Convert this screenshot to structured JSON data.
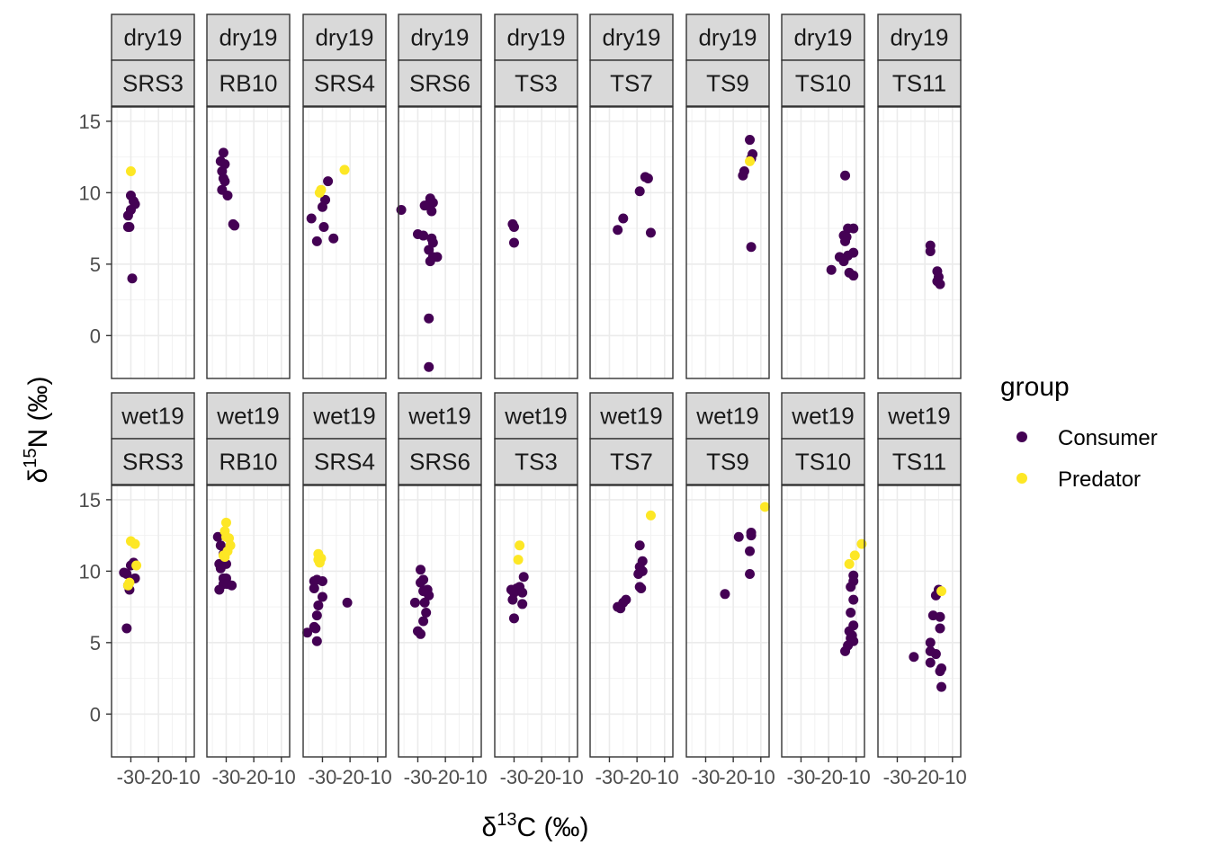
{
  "chart_data": {
    "type": "scatter",
    "xlabel": "δ13C (‰)",
    "ylabel": "δ15N (‰)",
    "xlim": [
      -37,
      -7
    ],
    "ylim": [
      -3,
      16
    ],
    "x_ticks": [
      -30,
      -20,
      -10
    ],
    "x_tick_labels": [
      "-30",
      "-20",
      "-10"
    ],
    "y_ticks": [
      0,
      5,
      10,
      15
    ],
    "y_tick_labels": [
      "0",
      "5",
      "10",
      "15"
    ],
    "grid": true,
    "legend": {
      "title": "group",
      "position": "right",
      "entries": [
        {
          "label": "Consumer",
          "color": "#440154"
        },
        {
          "label": "Predator",
          "color": "#FDE725"
        }
      ]
    },
    "seasons": [
      "dry19",
      "wet19"
    ],
    "sites": [
      "SRS3",
      "RB10",
      "SRS4",
      "SRS6",
      "TS3",
      "TS7",
      "TS9",
      "TS10",
      "TS11"
    ],
    "panels": [
      {
        "season": "dry19",
        "site": "SRS3",
        "consumer": [
          [
            -30,
            9.8
          ],
          [
            -29,
            9.4
          ],
          [
            -28.5,
            9.2
          ],
          [
            -30,
            8.8
          ],
          [
            -31,
            8.4
          ],
          [
            -31,
            7.6
          ],
          [
            -30.5,
            7.6
          ],
          [
            -29.5,
            4.0
          ]
        ],
        "predator": [
          [
            -30,
            11.5
          ]
        ]
      },
      {
        "season": "dry19",
        "site": "RB10",
        "consumer": [
          [
            -31,
            12.8
          ],
          [
            -32,
            12.2
          ],
          [
            -30.5,
            12.0
          ],
          [
            -31.5,
            11.5
          ],
          [
            -31,
            11.0
          ],
          [
            -30.5,
            10.8
          ],
          [
            -31.5,
            10.2
          ],
          [
            -29.5,
            9.8
          ],
          [
            -27.5,
            7.8
          ],
          [
            -27,
            7.7
          ]
        ],
        "predator": []
      },
      {
        "season": "dry19",
        "site": "SRS4",
        "consumer": [
          [
            -28,
            10.8
          ],
          [
            -29,
            9.5
          ],
          [
            -30,
            9.0
          ],
          [
            -34,
            8.2
          ],
          [
            -29.5,
            7.6
          ],
          [
            -26,
            6.8
          ],
          [
            -32,
            6.6
          ]
        ],
        "predator": [
          [
            -22,
            11.6
          ],
          [
            -30.5,
            10.2
          ],
          [
            -31,
            10.0
          ]
        ]
      },
      {
        "season": "dry19",
        "site": "SRS6",
        "consumer": [
          [
            -36,
            8.8
          ],
          [
            -30,
            7.1
          ],
          [
            -28,
            7.0
          ],
          [
            -25.5,
            9.6
          ],
          [
            -24.5,
            9.3
          ],
          [
            -26,
            9.2
          ],
          [
            -27.5,
            9.1
          ],
          [
            -25,
            8.7
          ],
          [
            -25,
            6.8
          ],
          [
            -24.5,
            6.5
          ],
          [
            -26,
            6.0
          ],
          [
            -23,
            5.5
          ],
          [
            -24.5,
            5.5
          ],
          [
            -25.5,
            5.2
          ],
          [
            -26,
            1.2
          ],
          [
            -26,
            -2.2
          ]
        ],
        "predator": []
      },
      {
        "season": "dry19",
        "site": "TS3",
        "consumer": [
          [
            -30.5,
            7.8
          ],
          [
            -30,
            7.6
          ],
          [
            -30,
            6.5
          ]
        ],
        "predator": []
      },
      {
        "season": "dry19",
        "site": "TS7",
        "consumer": [
          [
            -17,
            11.1
          ],
          [
            -16,
            11.0
          ],
          [
            -19,
            10.1
          ],
          [
            -25,
            8.2
          ],
          [
            -27,
            7.4
          ],
          [
            -15,
            7.2
          ]
        ],
        "predator": []
      },
      {
        "season": "dry19",
        "site": "TS9",
        "consumer": [
          [
            -14,
            13.7
          ],
          [
            -13,
            12.7
          ],
          [
            -13.5,
            12.4
          ],
          [
            -16,
            11.5
          ],
          [
            -16.5,
            11.2
          ],
          [
            -13.5,
            6.2
          ]
        ],
        "predator": [
          [
            -14,
            12.2
          ]
        ]
      },
      {
        "season": "dry19",
        "site": "TS10",
        "consumer": [
          [
            -14,
            11.2
          ],
          [
            -11,
            7.5
          ],
          [
            -13,
            7.5
          ],
          [
            -14.5,
            7.0
          ],
          [
            -13.5,
            6.9
          ],
          [
            -14,
            6.6
          ],
          [
            -11,
            5.8
          ],
          [
            -13,
            5.6
          ],
          [
            -16,
            5.5
          ],
          [
            -14.5,
            5.2
          ],
          [
            -19,
            4.6
          ],
          [
            -12.5,
            4.4
          ],
          [
            -11,
            4.2
          ]
        ],
        "predator": []
      },
      {
        "season": "dry19",
        "site": "TS11",
        "consumer": [
          [
            -18,
            6.3
          ],
          [
            -18,
            5.9
          ],
          [
            -15.5,
            4.5
          ],
          [
            -15,
            4.1
          ],
          [
            -15.5,
            3.8
          ],
          [
            -14.5,
            3.6
          ]
        ],
        "predator": []
      },
      {
        "season": "wet19",
        "site": "SRS3",
        "consumer": [
          [
            -32.5,
            9.9
          ],
          [
            -31.5,
            9.8
          ],
          [
            -30,
            10.4
          ],
          [
            -29,
            10.6
          ],
          [
            -28.5,
            9.5
          ],
          [
            -31,
            9.0
          ],
          [
            -30.5,
            8.7
          ],
          [
            -31.5,
            6.0
          ]
        ],
        "predator": [
          [
            -30,
            12.1
          ],
          [
            -28.5,
            11.9
          ],
          [
            -28,
            10.4
          ],
          [
            -30.5,
            9.2
          ],
          [
            -31,
            9.0
          ]
        ]
      },
      {
        "season": "wet19",
        "site": "RB10",
        "consumer": [
          [
            -33,
            12.4
          ],
          [
            -32,
            11.8
          ],
          [
            -31,
            11.2
          ],
          [
            -32.5,
            10.5
          ],
          [
            -30,
            10.5
          ],
          [
            -32,
            10.2
          ],
          [
            -31,
            9.5
          ],
          [
            -30,
            9.5
          ],
          [
            -31,
            9.1
          ],
          [
            -29.5,
            9.1
          ],
          [
            -28,
            9.0
          ],
          [
            -32.5,
            8.7
          ]
        ],
        "predator": [
          [
            -30,
            13.4
          ],
          [
            -30.5,
            12.8
          ],
          [
            -30,
            12.4
          ],
          [
            -29,
            12.3
          ],
          [
            -28.5,
            11.8
          ],
          [
            -29.5,
            11.4
          ],
          [
            -31,
            11.1
          ],
          [
            -30.5,
            11.0
          ]
        ]
      },
      {
        "season": "wet19",
        "site": "SRS4",
        "consumer": [
          [
            -33,
            9.3
          ],
          [
            -32,
            9.4
          ],
          [
            -30,
            9.3
          ],
          [
            -33,
            8.8
          ],
          [
            -30,
            8.2
          ],
          [
            -31.5,
            7.6
          ],
          [
            -32,
            6.9
          ],
          [
            -33,
            6.1
          ],
          [
            -32.5,
            6.0
          ],
          [
            -35.5,
            5.7
          ],
          [
            -32,
            5.1
          ],
          [
            -21,
            7.8
          ]
        ],
        "predator": [
          [
            -31.5,
            11.2
          ],
          [
            -30.5,
            10.9
          ],
          [
            -31.5,
            10.8
          ],
          [
            -31,
            10.6
          ]
        ]
      },
      {
        "season": "wet19",
        "site": "SRS6",
        "consumer": [
          [
            -29,
            10.1
          ],
          [
            -28,
            9.4
          ],
          [
            -29,
            9.2
          ],
          [
            -26.5,
            8.7
          ],
          [
            -26,
            8.3
          ],
          [
            -28,
            8.6
          ],
          [
            -27.5,
            7.8
          ],
          [
            -31,
            7.8
          ],
          [
            -27,
            7.1
          ],
          [
            -28,
            6.5
          ],
          [
            -30,
            5.8
          ],
          [
            -29,
            5.6
          ]
        ],
        "predator": []
      },
      {
        "season": "wet19",
        "site": "TS3",
        "consumer": [
          [
            -26.5,
            9.6
          ],
          [
            -28,
            8.9
          ],
          [
            -29,
            8.8
          ],
          [
            -31,
            8.7
          ],
          [
            -30,
            8.5
          ],
          [
            -27,
            8.5
          ],
          [
            -30.5,
            8.0
          ],
          [
            -27,
            7.7
          ],
          [
            -30,
            6.7
          ]
        ],
        "predator": [
          [
            -28,
            11.8
          ],
          [
            -28.5,
            10.8
          ]
        ]
      },
      {
        "season": "wet19",
        "site": "TS7",
        "consumer": [
          [
            -19,
            11.8
          ],
          [
            -18,
            10.7
          ],
          [
            -19,
            10.3
          ],
          [
            -18,
            10.0
          ],
          [
            -19.5,
            9.8
          ],
          [
            -19,
            8.9
          ],
          [
            -18.5,
            8.8
          ],
          [
            -24,
            8.0
          ],
          [
            -25,
            7.8
          ],
          [
            -26,
            7.4
          ],
          [
            -27,
            7.5
          ]
        ],
        "predator": [
          [
            -15,
            13.9
          ]
        ]
      },
      {
        "season": "wet19",
        "site": "TS9",
        "consumer": [
          [
            -13.5,
            12.7
          ],
          [
            -13.5,
            12.5
          ],
          [
            -18,
            12.4
          ],
          [
            -14,
            11.4
          ],
          [
            -14,
            9.8
          ],
          [
            -23,
            8.4
          ]
        ],
        "predator": [
          [
            -8.5,
            14.5
          ]
        ]
      },
      {
        "season": "wet19",
        "site": "TS10",
        "consumer": [
          [
            -11,
            9.7
          ],
          [
            -11,
            9.3
          ],
          [
            -12,
            8.9
          ],
          [
            -11,
            8.0
          ],
          [
            -12,
            7.1
          ],
          [
            -11,
            6.2
          ],
          [
            -12.5,
            5.8
          ],
          [
            -11.5,
            5.5
          ],
          [
            -12,
            5.3
          ],
          [
            -11,
            5.1
          ],
          [
            -13,
            4.8
          ],
          [
            -14,
            4.4
          ]
        ],
        "predator": [
          [
            -8,
            11.9
          ],
          [
            -10.5,
            11.1
          ],
          [
            -12.5,
            10.5
          ]
        ]
      },
      {
        "season": "wet19",
        "site": "TS11",
        "consumer": [
          [
            -15,
            8.7
          ],
          [
            -16,
            8.3
          ],
          [
            -17,
            6.9
          ],
          [
            -14.5,
            6.8
          ],
          [
            -14.5,
            6.0
          ],
          [
            -18,
            5.0
          ],
          [
            -18,
            4.4
          ],
          [
            -16,
            4.2
          ],
          [
            -24,
            4.0
          ],
          [
            -18,
            3.6
          ],
          [
            -14,
            3.2
          ],
          [
            -14.5,
            3.0
          ],
          [
            -14,
            1.9
          ]
        ],
        "predator": [
          [
            -14,
            8.6
          ]
        ]
      }
    ]
  }
}
